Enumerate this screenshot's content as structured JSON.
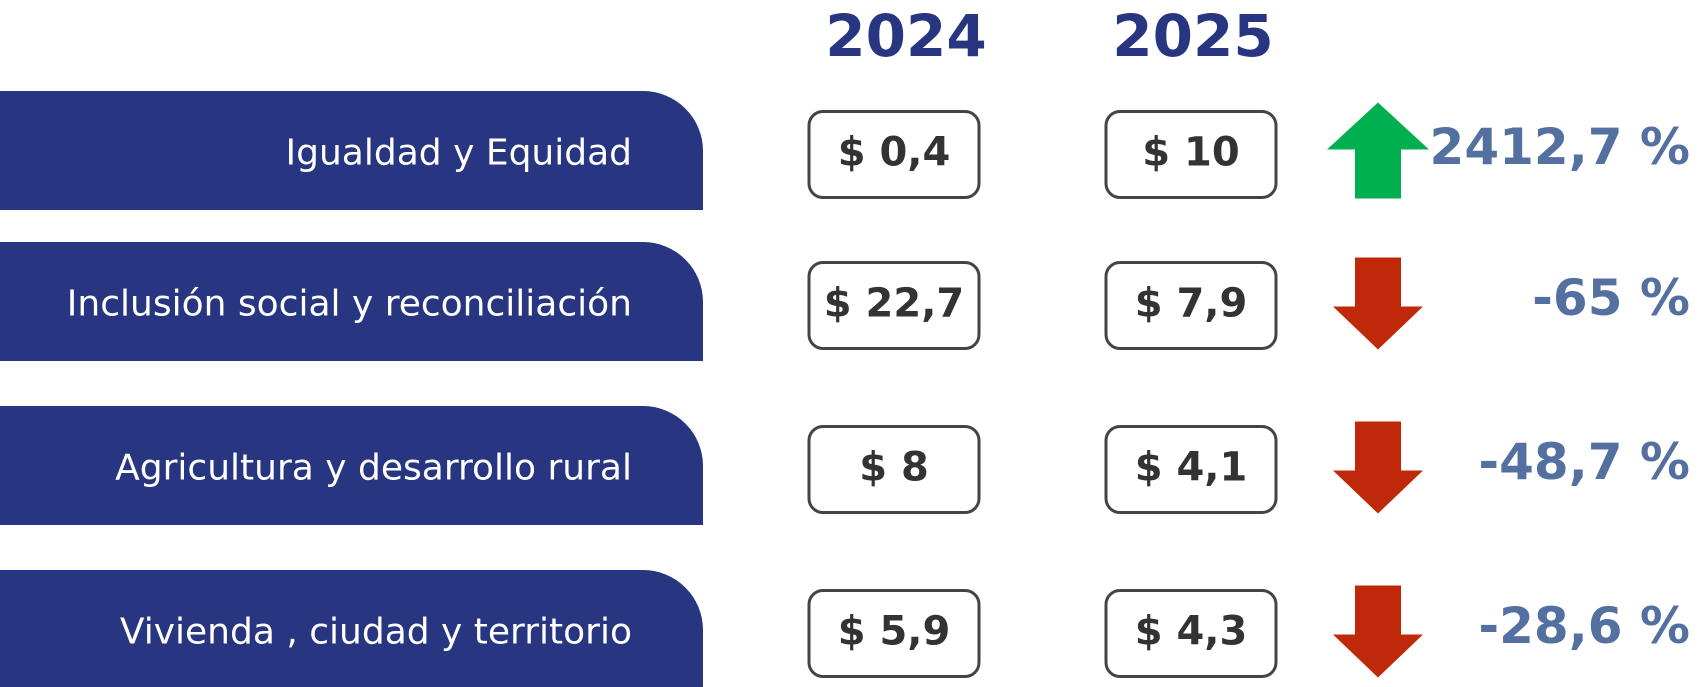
{
  "header": {
    "columns": [
      "2024",
      "2025"
    ]
  },
  "rows": [
    {
      "label": "Igualdad y Equidad",
      "values": [
        "$ 0,4",
        "$ 10"
      ],
      "change": "2412,7 %",
      "arrow": "up",
      "arrow_color": "#00b050"
    },
    {
      "label": "Inclusión social y reconciliación",
      "values": [
        "$ 22,7",
        "$ 7,9"
      ],
      "change": "-65 %",
      "arrow": "down",
      "arrow_color": "#c0280a"
    },
    {
      "label": "Agricultura y desarrollo rural",
      "values": [
        "$ 8",
        "$ 4,1"
      ],
      "change": "-48,7 %",
      "arrow": "down",
      "arrow_color": "#c0280a"
    },
    {
      "label": "Vivienda , ciudad y territorio",
      "values": [
        "$ 5,9",
        "$ 4,3"
      ],
      "change": "-28,6 %",
      "arrow": "down",
      "arrow_color": "#c0280a"
    }
  ],
  "band_color": "#283580"
}
